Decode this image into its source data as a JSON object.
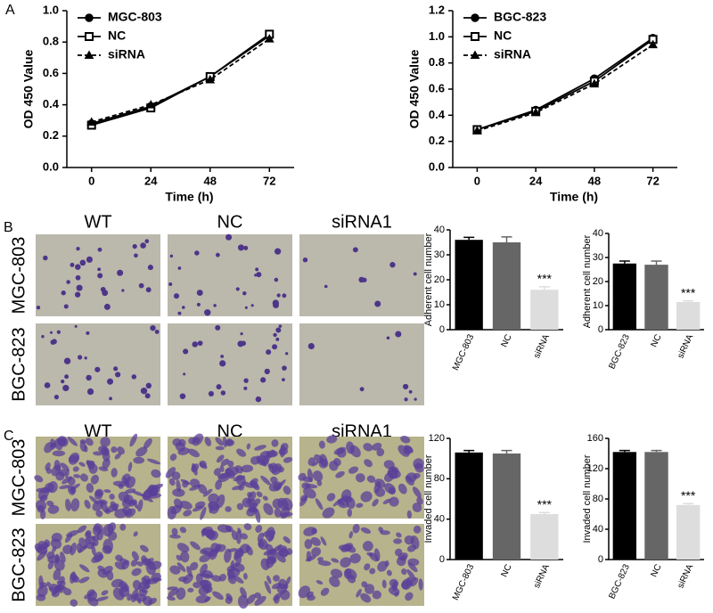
{
  "panel_labels": [
    "A",
    "B",
    "C"
  ],
  "micrographs": [
    {
      "columns": [
        "WT",
        "NC",
        "siRNA1"
      ],
      "rows": [
        "MGC-803",
        "BGC-823"
      ]
    },
    {
      "columns": [
        "WT",
        "NC",
        "siRNA1"
      ],
      "rows": [
        "MGC-803",
        "BGC-823"
      ]
    }
  ],
  "chart_data": [
    {
      "type": "line",
      "x_label": "Time (h)",
      "y_label": "OD 450 Value",
      "x": [
        0,
        24,
        48,
        72
      ],
      "xlim": [
        -10,
        82
      ],
      "xticks": [
        0,
        24,
        48,
        72
      ],
      "ylim": [
        0,
        1.0
      ],
      "yticks": [
        {
          "value": 0,
          "label": "0.0"
        },
        0.2,
        0.4,
        0.6,
        0.8,
        {
          "value": 1.0,
          "label": "1.0"
        }
      ],
      "series": [
        {
          "name": "MGC-803",
          "color": "#000000",
          "marker": "circle",
          "marker_fill": "#000000",
          "dashed": false,
          "values": [
            0.28,
            0.39,
            0.58,
            0.84
          ]
        },
        {
          "name": "NC",
          "color": "#000000",
          "marker": "square",
          "marker_fill": "#ffffff",
          "dashed": false,
          "values": [
            0.27,
            0.38,
            0.58,
            0.85
          ]
        },
        {
          "name": "siRNA",
          "color": "#000000",
          "marker": "triangle",
          "marker_fill": "#000000",
          "dashed": true,
          "values": [
            0.29,
            0.4,
            0.56,
            0.82
          ]
        }
      ]
    },
    {
      "type": "line",
      "x_label": "Time (h)",
      "y_label": "OD 450 Value",
      "x": [
        0,
        24,
        48,
        72
      ],
      "xlim": [
        -10,
        82
      ],
      "xticks": [
        0,
        24,
        48,
        72
      ],
      "ylim": [
        0,
        1.2
      ],
      "yticks": [
        {
          "value": 0,
          "label": "0.0"
        },
        0.2,
        0.4,
        0.6,
        0.8,
        {
          "value": 1.0,
          "label": "1.0"
        },
        1.2
      ],
      "series": [
        {
          "name": "BGC-823",
          "color": "#000000",
          "marker": "circle",
          "marker_fill": "#000000",
          "dashed": false,
          "values": [
            0.29,
            0.44,
            0.68,
            0.99
          ]
        },
        {
          "name": "NC",
          "color": "#000000",
          "marker": "square",
          "marker_fill": "#ffffff",
          "dashed": false,
          "values": [
            0.29,
            0.43,
            0.66,
            0.98
          ]
        },
        {
          "name": "siRNA",
          "color": "#000000",
          "marker": "triangle",
          "marker_fill": "#000000",
          "dashed": true,
          "values": [
            0.28,
            0.42,
            0.64,
            0.94
          ]
        }
      ]
    },
    {
      "type": "bar",
      "y_label": "Adherent cell number",
      "categories": [
        "MGC-803",
        "NC",
        "siRNA"
      ],
      "values": [
        36,
        35,
        16
      ],
      "errors": [
        1,
        2.2,
        1.2
      ],
      "colors": [
        "#000000",
        "#666666",
        "#dddddd"
      ],
      "ylim": [
        0,
        40
      ],
      "yticks": [
        0,
        10,
        20,
        30,
        40
      ],
      "annotation": "***"
    },
    {
      "type": "bar",
      "y_label": "Adherent cell number",
      "categories": [
        "BGC-823",
        "NC",
        "siRNA"
      ],
      "values": [
        27.5,
        27,
        11.5
      ],
      "errors": [
        1,
        1.5,
        0.5
      ],
      "colors": [
        "#000000",
        "#666666",
        "#dddddd"
      ],
      "ylim": [
        0,
        40
      ],
      "yticks": [
        0,
        10,
        20,
        30,
        40
      ],
      "annotation": "***"
    },
    {
      "type": "bar",
      "y_label": "Invaded cell number",
      "categories": [
        "MGC-803",
        "NC",
        "siRNA"
      ],
      "values": [
        106,
        105,
        45
      ],
      "errors": [
        2,
        3,
        1.5
      ],
      "colors": [
        "#000000",
        "#666666",
        "#dddddd"
      ],
      "ylim": [
        0,
        120
      ],
      "yticks": [
        0,
        40,
        80,
        120
      ],
      "annotation": "***"
    },
    {
      "type": "bar",
      "y_label": "Invaded cell number",
      "categories": [
        "BGC-823",
        "NC",
        "siRNA"
      ],
      "values": [
        142,
        142,
        72
      ],
      "errors": [
        2,
        2,
        2
      ],
      "colors": [
        "#000000",
        "#666666",
        "#dddddd"
      ],
      "ylim": [
        0,
        160
      ],
      "yticks": [
        0,
        40,
        80,
        120,
        160
      ],
      "annotation": "***"
    }
  ]
}
